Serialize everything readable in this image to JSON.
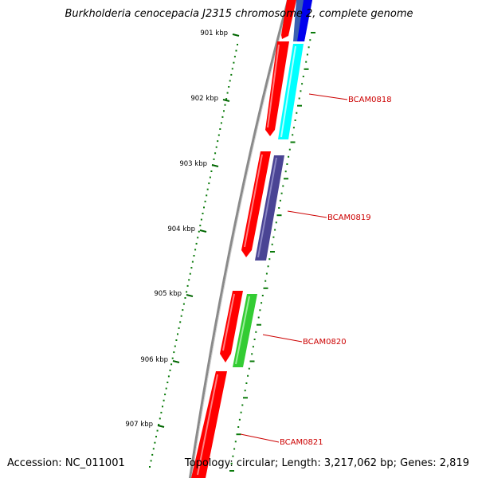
{
  "title": "Burkholderia cenocepacia J2315 chromosome 2, complete genome",
  "accession": "Accession: NC_011001",
  "summary": "Topology: circular; Length: 3,217,062 bp; Genes: 2,819",
  "ticks": [
    "901 kbp",
    "902 kbp",
    "903 kbp",
    "904 kbp",
    "905 kbp",
    "906 kbp",
    "907 kbp"
  ],
  "genes": [
    {
      "label": "",
      "color": "#0000ee"
    },
    {
      "label": "BCAM0818",
      "color": "#00ffff"
    },
    {
      "label": "BCAM0819",
      "color": "#4a4494"
    },
    {
      "label": "BCAM0820",
      "color": "#33cc33"
    },
    {
      "label": "BCAM0821",
      "color": "#ff0000"
    }
  ],
  "colors": {
    "backbone": "#808080",
    "cds": "#ff0000",
    "ticks": "#006600",
    "label": "#cc0000",
    "blue_block": "#3a5fb0"
  }
}
